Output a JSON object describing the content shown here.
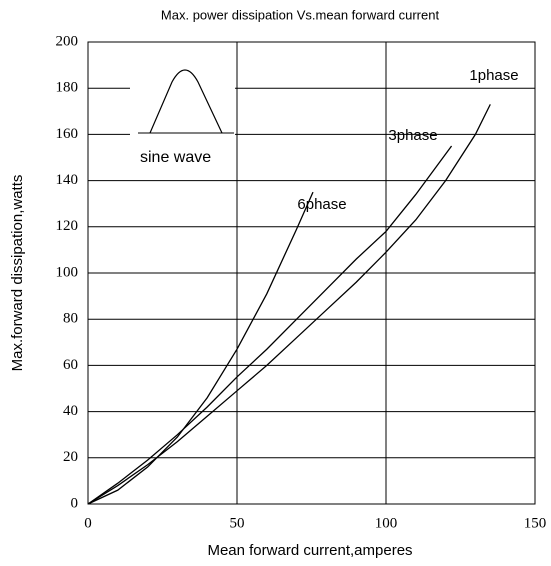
{
  "chart_data": {
    "type": "line",
    "title": "Max. power dissipation Vs.mean forward current",
    "xlabel": "Mean forward current,amperes",
    "ylabel": "Max.forward dissipation,watts",
    "inset_label": "sine wave",
    "xlim": [
      0,
      150
    ],
    "xticks": [
      0,
      50,
      100,
      150
    ],
    "ylim": [
      0,
      200
    ],
    "yticks": [
      0,
      20,
      40,
      60,
      80,
      100,
      120,
      140,
      160,
      180,
      200
    ],
    "grid": true,
    "series": [
      {
        "name": "6phase",
        "color": "#000000",
        "x": [
          0,
          10,
          20,
          30,
          40,
          50,
          60,
          70,
          75.5
        ],
        "values": [
          0,
          6,
          16,
          29,
          46,
          67,
          91,
          119,
          135
        ]
      },
      {
        "name": "3phase",
        "color": "#000000",
        "x": [
          0,
          10,
          20,
          30,
          40,
          50,
          60,
          70,
          80,
          90,
          100,
          110,
          122
        ],
        "values": [
          0,
          9,
          19,
          30,
          42,
          55,
          67,
          80,
          93,
          106,
          118,
          134,
          155
        ]
      },
      {
        "name": "1phase",
        "color": "#000000",
        "x": [
          0,
          10,
          20,
          30,
          40,
          50,
          60,
          70,
          80,
          90,
          100,
          110,
          120,
          130,
          135
        ],
        "values": [
          0,
          8,
          17,
          27,
          38,
          49,
          60,
          72,
          84,
          96,
          109,
          123,
          140,
          160,
          173
        ]
      }
    ]
  }
}
